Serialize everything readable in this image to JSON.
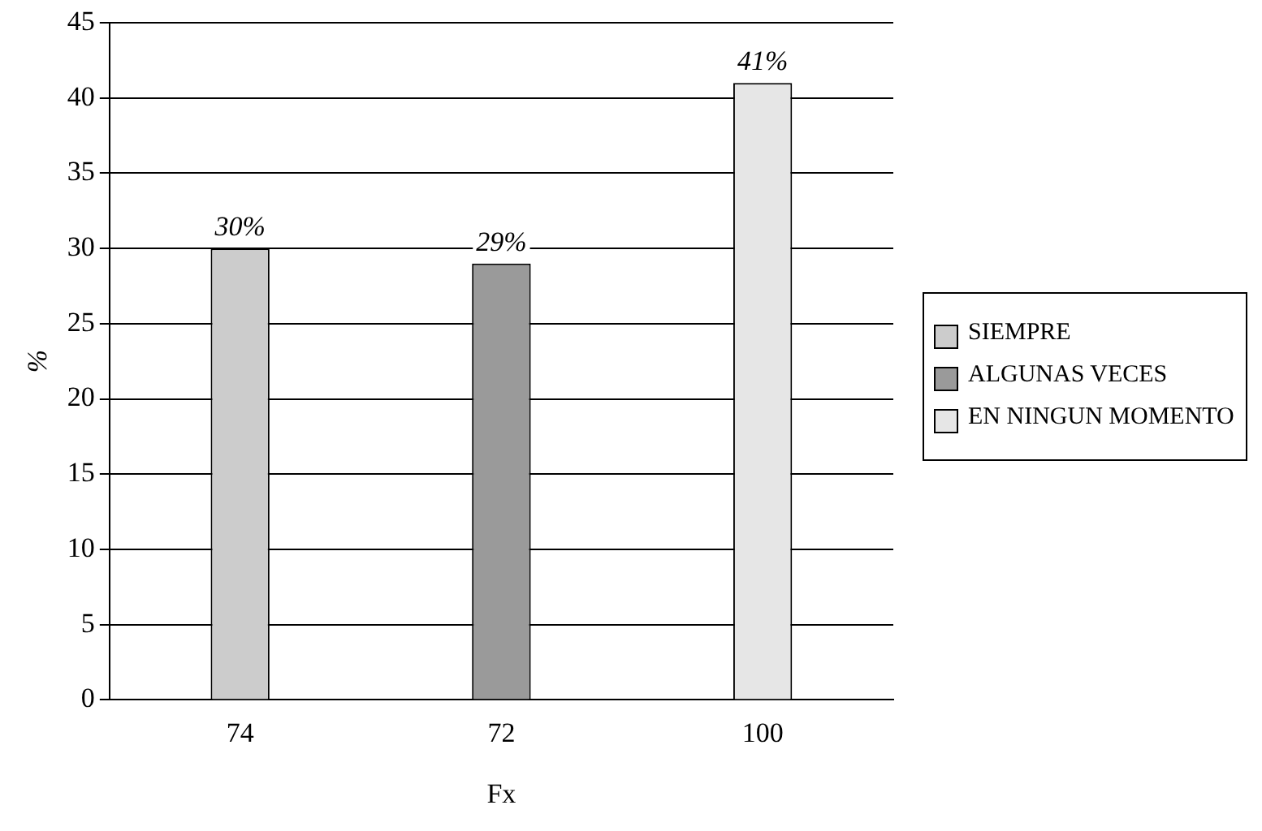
{
  "chart_data": {
    "type": "bar",
    "xlabel": "Fx",
    "ylabel": "%",
    "categories": [
      "74",
      "72",
      "100"
    ],
    "series": [
      {
        "name": "SIEMPRE",
        "color": "#cccccc",
        "values": [
          30,
          null,
          null
        ],
        "value_labels": [
          "30%",
          null,
          null
        ]
      },
      {
        "name": "ALGUNAS VECES",
        "color": "#9a9a9a",
        "values": [
          null,
          29,
          null
        ],
        "value_labels": [
          null,
          "29%",
          null
        ]
      },
      {
        "name": "EN NINGUN MOMENTO",
        "color": "#e6e6e6",
        "values": [
          null,
          null,
          41
        ],
        "value_labels": [
          null,
          null,
          "41%"
        ]
      }
    ],
    "ylim": [
      0,
      45
    ],
    "yticks": [
      0,
      5,
      10,
      15,
      20,
      25,
      30,
      35,
      40,
      45
    ],
    "grid": "y",
    "legend": "right"
  }
}
